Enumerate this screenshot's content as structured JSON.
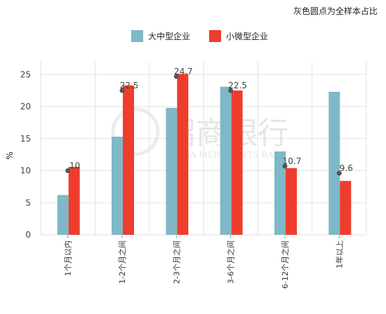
{
  "note": "灰色圆点为全样本占比",
  "watermark": {
    "cn": "招商银行",
    "en": "CHINA MERCHANTS BANK"
  },
  "colors": {
    "large_medium": "#7fb8c6",
    "small_micro": "#ee3d2c",
    "dot": "#555555"
  },
  "chart_data": {
    "type": "bar",
    "ylabel": "%",
    "ylim": [
      0,
      27
    ],
    "yticks": [
      0,
      5,
      10,
      15,
      20,
      25
    ],
    "grid": true,
    "legend_position": "top-center",
    "categories": [
      "1个月以内",
      "1-2个月之间",
      "2-3个月之间",
      "3-6个月之间",
      "6-12个月之间",
      "1年以上"
    ],
    "series": [
      {
        "name": "大中型企业",
        "values": [
          6.2,
          15.3,
          19.8,
          23.1,
          13.0,
          22.3
        ]
      },
      {
        "name": "小微型企业",
        "values": [
          10.6,
          23.3,
          25.1,
          22.5,
          10.4,
          8.4
        ]
      }
    ],
    "full_sample": {
      "values": [
        10,
        22.5,
        24.7,
        22.5,
        10.7,
        9.6
      ],
      "labels": [
        "10",
        "22.5",
        "24.7",
        "22.5",
        "10.7",
        "9.6"
      ]
    }
  }
}
